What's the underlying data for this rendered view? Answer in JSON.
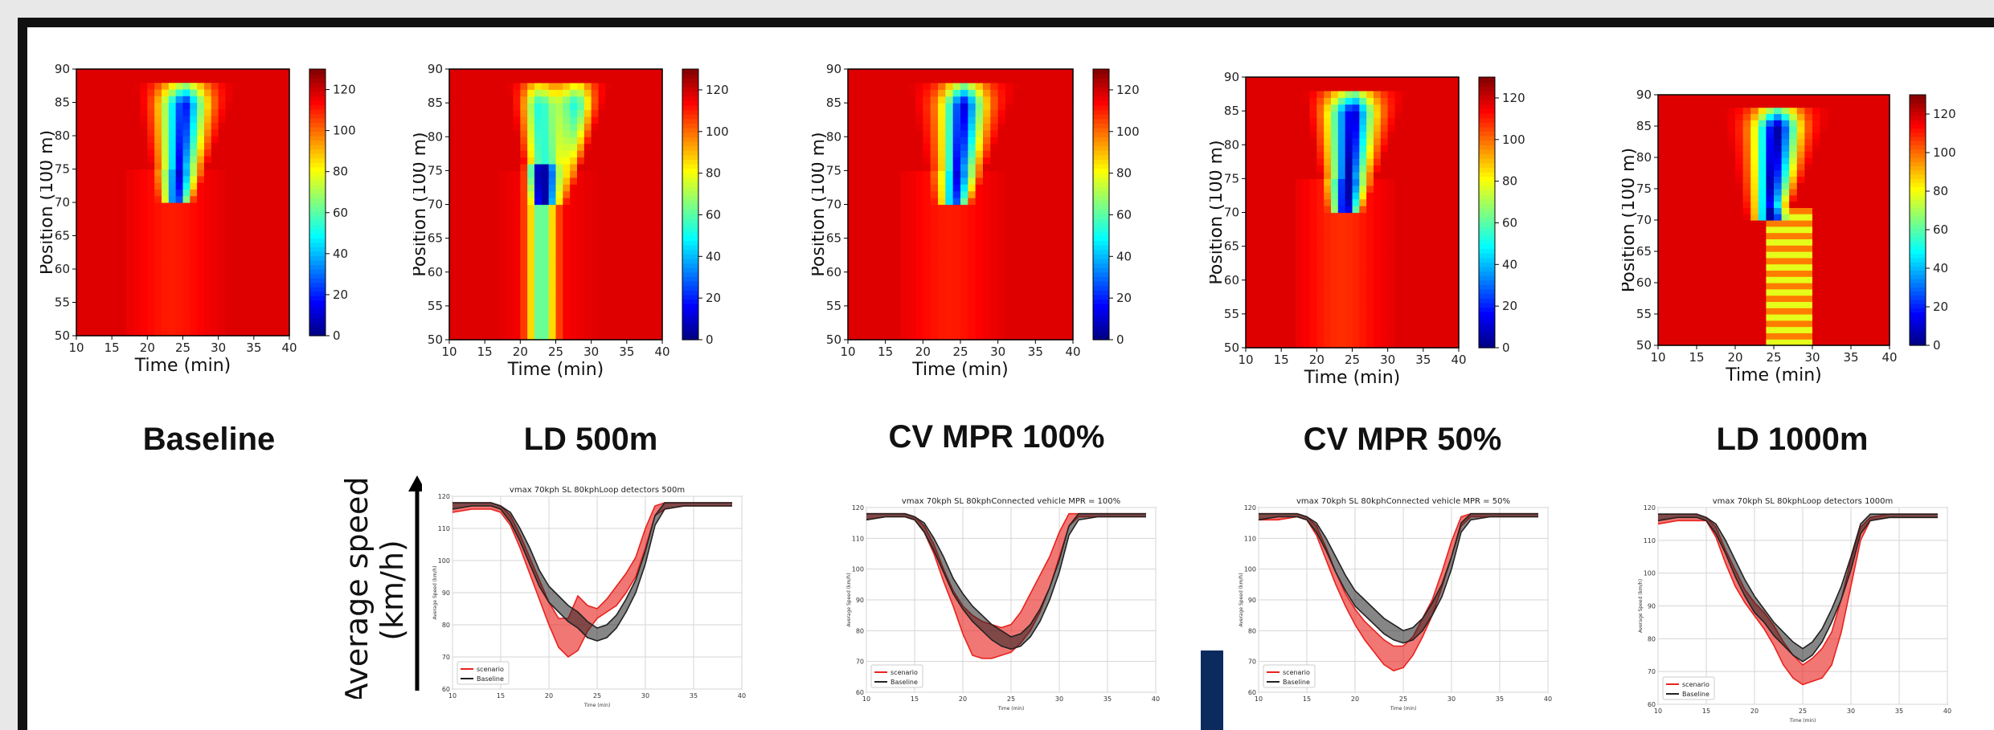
{
  "heatmaps": [
    {
      "caption": "Baseline",
      "variant": "baseline"
    },
    {
      "caption": "LD 500m",
      "variant": "ld500"
    },
    {
      "caption": "CV MPR 100%",
      "variant": "cv100"
    },
    {
      "caption": "CV MPR 50%",
      "variant": "cv50"
    },
    {
      "caption": "LD 1000m",
      "variant": "ld1000"
    }
  ],
  "heatmap_axes": {
    "xlabel": "Time (min)",
    "ylabel": "Position (100 m)",
    "xticks": [
      10,
      15,
      20,
      25,
      30,
      35,
      40
    ],
    "yticks": [
      50,
      55,
      60,
      65,
      70,
      75,
      80,
      85,
      90
    ],
    "xlim": [
      10,
      40
    ],
    "ylim": [
      50,
      90
    ],
    "colorbar_ticks": [
      0,
      20,
      40,
      60,
      80,
      100,
      120
    ],
    "colorbar_range": [
      0,
      130
    ],
    "colormap": "jet_r"
  },
  "side_label": {
    "line1": "Average speed",
    "line2": "(km/h)"
  },
  "chart_data": [
    {
      "type": "line",
      "title": "vmax 70kph SL 80kphLoop detectors 500m",
      "xlabel": "Time (min)",
      "ylabel": "Average Speed (km/h)",
      "xlim": [
        10,
        40
      ],
      "ylim": [
        60,
        120
      ],
      "xticks": [
        10,
        15,
        20,
        25,
        30,
        35,
        40
      ],
      "yticks": [
        60,
        70,
        80,
        90,
        100,
        110,
        120
      ],
      "legend": "lower-left",
      "grid": true,
      "series": [
        {
          "name": "scenario",
          "color": "#e8231f",
          "x": [
            10,
            12,
            14,
            15,
            16,
            17,
            18,
            19,
            20,
            21,
            22,
            23,
            24,
            25,
            26,
            27,
            28,
            29,
            30,
            31,
            32,
            34,
            36,
            39
          ],
          "lower": [
            115,
            116,
            116,
            115,
            111,
            104,
            96,
            88,
            80,
            73,
            70,
            72,
            78,
            82,
            84,
            86,
            90,
            95,
            104,
            114,
            116,
            117,
            117,
            117
          ],
          "upper": [
            118,
            118,
            118,
            117,
            114,
            108,
            101,
            94,
            87,
            82,
            82,
            89,
            86,
            85,
            88,
            92,
            96,
            101,
            110,
            117,
            118,
            118,
            118,
            118
          ]
        },
        {
          "name": "Baseline",
          "color": "#222222",
          "x": [
            10,
            12,
            14,
            15,
            16,
            17,
            18,
            19,
            20,
            21,
            22,
            23,
            24,
            25,
            26,
            27,
            28,
            29,
            30,
            31,
            32,
            34,
            36,
            39
          ],
          "lower": [
            116,
            117,
            117,
            116,
            112,
            106,
            99,
            92,
            87,
            84,
            81,
            79,
            76,
            75,
            76,
            79,
            84,
            90,
            99,
            111,
            116,
            117,
            117,
            117
          ],
          "upper": [
            118,
            118,
            118,
            117,
            115,
            110,
            104,
            97,
            92,
            89,
            86,
            84,
            81,
            79,
            80,
            83,
            88,
            94,
            103,
            114,
            118,
            118,
            118,
            118
          ]
        }
      ]
    },
    {
      "type": "line",
      "title": "vmax 70kph SL 80kphConnected vehicle MPR = 100%",
      "xlabel": "Time (min)",
      "ylabel": "Average Speed (km/h)",
      "xlim": [
        10,
        40
      ],
      "ylim": [
        60,
        120
      ],
      "xticks": [
        10,
        15,
        20,
        25,
        30,
        35,
        40
      ],
      "yticks": [
        60,
        70,
        80,
        90,
        100,
        110,
        120
      ],
      "legend": "lower-left",
      "grid": true,
      "series": [
        {
          "name": "scenario",
          "color": "#e8231f",
          "x": [
            10,
            12,
            14,
            15,
            16,
            17,
            18,
            19,
            20,
            21,
            22,
            23,
            24,
            25,
            26,
            27,
            28,
            29,
            30,
            31,
            32,
            34,
            36,
            39
          ],
          "lower": [
            116,
            117,
            117,
            116,
            112,
            105,
            96,
            88,
            79,
            72,
            71,
            71,
            72,
            73,
            76,
            80,
            86,
            94,
            104,
            114,
            117,
            117,
            117,
            117
          ],
          "upper": [
            118,
            118,
            118,
            117,
            114,
            108,
            100,
            93,
            88,
            85,
            83,
            82,
            81,
            82,
            86,
            92,
            98,
            104,
            112,
            118,
            118,
            118,
            118,
            118
          ]
        },
        {
          "name": "Baseline",
          "color": "#222222",
          "x": [
            10,
            12,
            14,
            15,
            16,
            17,
            18,
            19,
            20,
            21,
            22,
            23,
            24,
            25,
            26,
            27,
            28,
            29,
            30,
            31,
            32,
            34,
            36,
            39
          ],
          "lower": [
            116,
            117,
            117,
            116,
            112,
            106,
            99,
            92,
            87,
            83,
            80,
            77,
            75,
            74,
            75,
            78,
            83,
            90,
            99,
            111,
            116,
            117,
            117,
            117
          ],
          "upper": [
            118,
            118,
            118,
            117,
            115,
            110,
            104,
            97,
            92,
            88,
            85,
            82,
            80,
            78,
            79,
            82,
            87,
            94,
            103,
            114,
            118,
            118,
            118,
            118
          ]
        }
      ]
    },
    {
      "type": "line",
      "title": "vmax 70kph SL 80kphConnected vehicle MPR = 50%",
      "xlabel": "Time (min)",
      "ylabel": "Average Speed (km/h)",
      "xlim": [
        10,
        40
      ],
      "ylim": [
        60,
        120
      ],
      "xticks": [
        10,
        15,
        20,
        25,
        30,
        35,
        40
      ],
      "yticks": [
        60,
        70,
        80,
        90,
        100,
        110,
        120
      ],
      "legend": "lower-left",
      "grid": true,
      "series": [
        {
          "name": "scenario",
          "color": "#e8231f",
          "x": [
            10,
            12,
            14,
            15,
            16,
            17,
            18,
            19,
            20,
            21,
            22,
            23,
            24,
            25,
            26,
            27,
            28,
            29,
            30,
            31,
            32,
            34,
            36,
            39
          ],
          "lower": [
            116,
            116,
            117,
            116,
            111,
            103,
            95,
            88,
            82,
            77,
            73,
            69,
            67,
            68,
            72,
            78,
            85,
            94,
            104,
            114,
            117,
            117,
            117,
            117
          ],
          "upper": [
            118,
            118,
            118,
            117,
            114,
            107,
            99,
            92,
            87,
            83,
            80,
            77,
            75,
            75,
            78,
            84,
            90,
            99,
            109,
            117,
            118,
            118,
            118,
            118
          ]
        },
        {
          "name": "Baseline",
          "color": "#222222",
          "x": [
            10,
            12,
            14,
            15,
            16,
            17,
            18,
            19,
            20,
            21,
            22,
            23,
            24,
            25,
            26,
            27,
            28,
            29,
            30,
            31,
            32,
            34,
            36,
            39
          ],
          "lower": [
            116,
            117,
            117,
            116,
            112,
            106,
            99,
            93,
            88,
            85,
            82,
            79,
            77,
            76,
            77,
            80,
            85,
            91,
            100,
            112,
            116,
            117,
            117,
            117
          ],
          "upper": [
            118,
            118,
            118,
            117,
            115,
            110,
            104,
            98,
            93,
            90,
            87,
            84,
            82,
            80,
            81,
            84,
            89,
            95,
            104,
            115,
            118,
            118,
            118,
            118
          ]
        }
      ]
    },
    {
      "type": "line",
      "title": "vmax 70kph SL 80kphLoop detectors 1000m",
      "xlabel": "Time (min)",
      "ylabel": "Average Speed (km/h)",
      "xlim": [
        10,
        40
      ],
      "ylim": [
        60,
        120
      ],
      "xticks": [
        10,
        15,
        20,
        25,
        30,
        35,
        40
      ],
      "yticks": [
        60,
        70,
        80,
        90,
        100,
        110,
        120
      ],
      "legend": "lower-left",
      "grid": true,
      "series": [
        {
          "name": "scenario",
          "color": "#e8231f",
          "x": [
            10,
            12,
            14,
            15,
            16,
            17,
            18,
            19,
            20,
            21,
            22,
            23,
            24,
            25,
            26,
            27,
            28,
            29,
            30,
            31,
            32,
            34,
            36,
            39
          ],
          "lower": [
            115,
            116,
            116,
            116,
            111,
            103,
            96,
            91,
            87,
            83,
            78,
            72,
            68,
            66,
            67,
            68,
            72,
            82,
            96,
            110,
            116,
            117,
            117,
            117
          ],
          "upper": [
            118,
            118,
            118,
            117,
            114,
            107,
            101,
            95,
            91,
            88,
            84,
            79,
            75,
            72,
            74,
            77,
            82,
            92,
            104,
            114,
            117,
            118,
            118,
            118
          ]
        },
        {
          "name": "Baseline",
          "color": "#222222",
          "x": [
            10,
            12,
            14,
            15,
            16,
            17,
            18,
            19,
            20,
            21,
            22,
            23,
            24,
            25,
            26,
            27,
            28,
            29,
            30,
            31,
            32,
            34,
            36,
            39
          ],
          "lower": [
            116,
            117,
            117,
            116,
            112,
            106,
            99,
            93,
            88,
            85,
            81,
            78,
            75,
            73,
            75,
            79,
            85,
            92,
            101,
            112,
            116,
            117,
            117,
            117
          ],
          "upper": [
            118,
            118,
            118,
            117,
            115,
            110,
            104,
            98,
            93,
            89,
            85,
            82,
            79,
            77,
            79,
            83,
            89,
            96,
            105,
            115,
            118,
            118,
            118,
            118
          ]
        }
      ]
    }
  ]
}
